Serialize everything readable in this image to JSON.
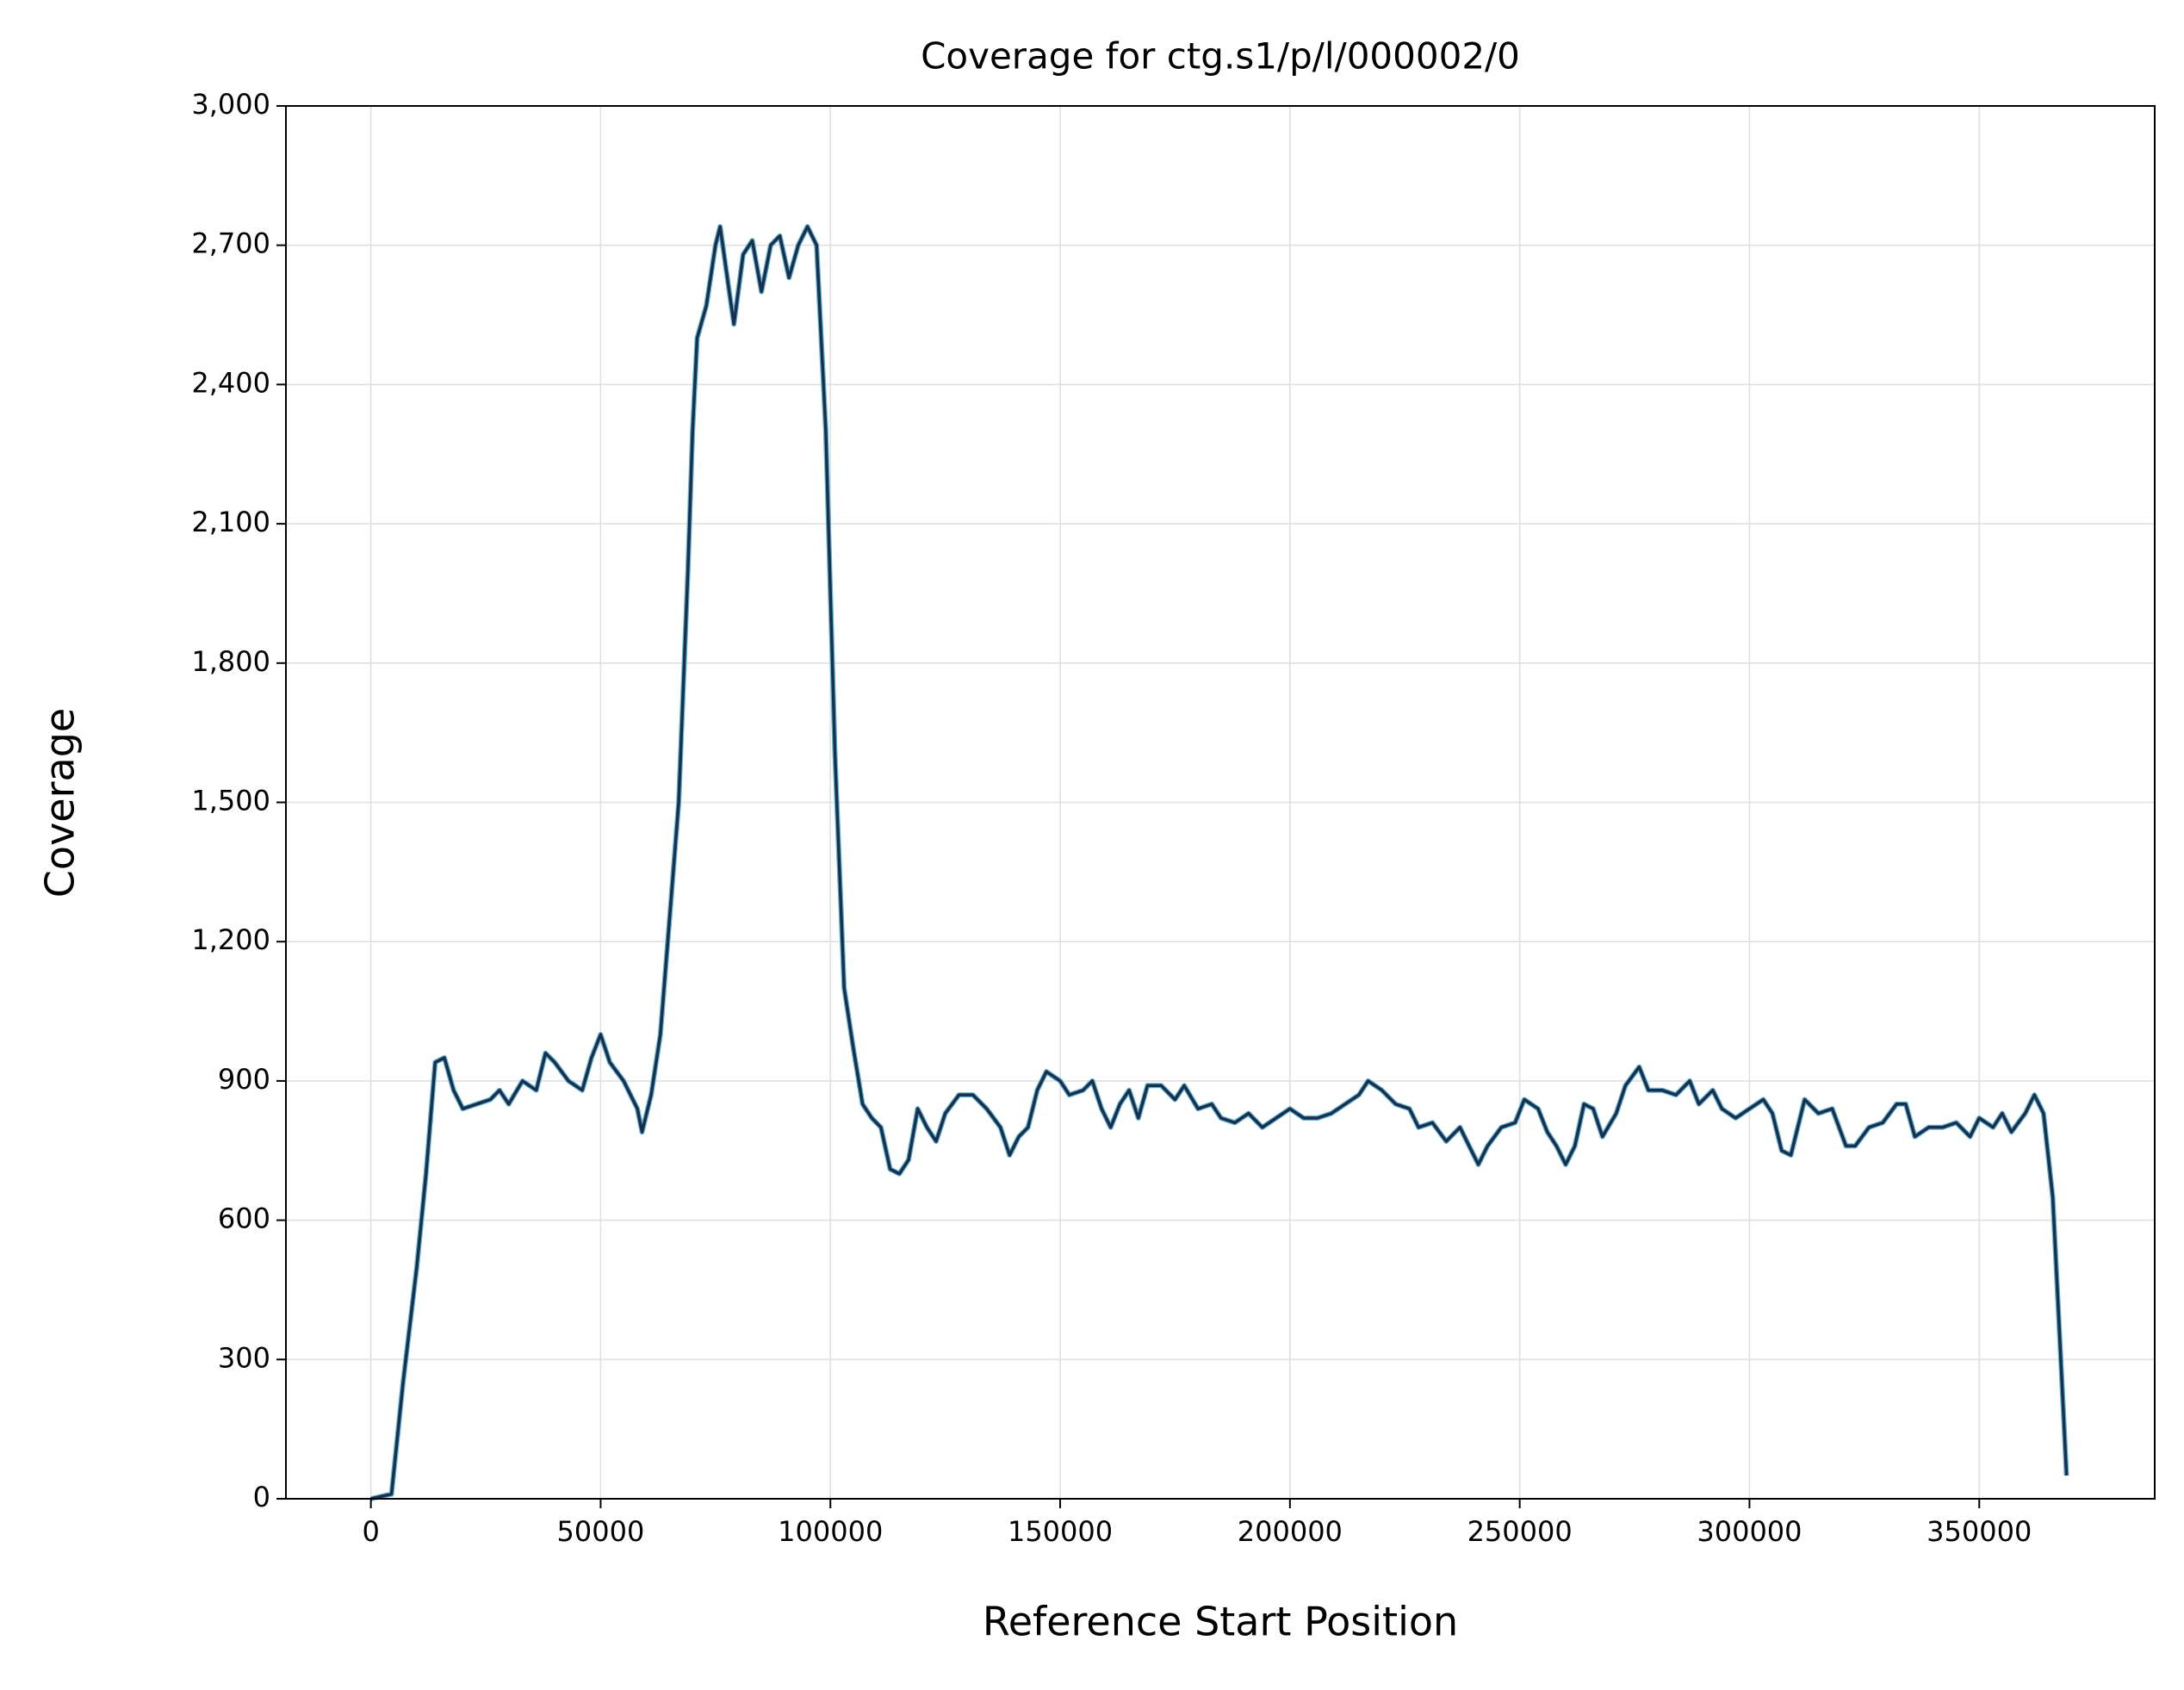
{
  "chart_data": {
    "type": "line",
    "title": "Coverage for ctg.s1/p/l/000002/0",
    "x_label": "Reference Start Position",
    "y_label": "Coverage",
    "xlim": [
      -18485,
      388185
    ],
    "ylim": [
      0,
      3000
    ],
    "xticks": [
      0,
      50000,
      100000,
      150000,
      200000,
      250000,
      300000,
      350000
    ],
    "yticks": [
      0,
      300,
      600,
      900,
      {
        "value": 1200,
        "label": "1,200"
      },
      {
        "value": 1500,
        "label": "1,500"
      },
      {
        "value": 1800,
        "label": "1,800"
      },
      {
        "value": 2100,
        "label": "2,100"
      },
      {
        "value": 2400,
        "label": "2,400"
      },
      {
        "value": 2700,
        "label": "2,700"
      },
      {
        "value": 3000,
        "label": "3,000"
      }
    ],
    "grid": true,
    "x": [
      0,
      4500,
      7000,
      10000,
      12000,
      14000,
      16000,
      18000,
      20000,
      23000,
      26000,
      28000,
      30000,
      33000,
      36000,
      38000,
      40000,
      43000,
      46000,
      48000,
      50000,
      52000,
      55000,
      58000,
      59000,
      61000,
      63000,
      65000,
      67000,
      69000,
      70000,
      71000,
      73000,
      75000,
      76000,
      78000,
      79000,
      81000,
      83000,
      85000,
      87000,
      89000,
      91000,
      93000,
      95000,
      97000,
      99000,
      101000,
      103000,
      105000,
      107000,
      109000,
      111000,
      113000,
      115000,
      117000,
      119000,
      121000,
      123000,
      125000,
      128000,
      131000,
      134000,
      137000,
      139000,
      141000,
      143000,
      145000,
      147000,
      150000,
      152000,
      155000,
      157000,
      159000,
      161000,
      163000,
      165000,
      167000,
      169000,
      172000,
      175000,
      177000,
      180000,
      183000,
      185000,
      188000,
      191000,
      194000,
      197000,
      200000,
      203000,
      206000,
      209000,
      212000,
      215000,
      217000,
      220000,
      223000,
      226000,
      228000,
      231000,
      234000,
      237000,
      239000,
      241000,
      243000,
      246000,
      249000,
      251000,
      254000,
      256000,
      258000,
      260000,
      262000,
      264000,
      266000,
      268000,
      271000,
      273000,
      276000,
      278000,
      281000,
      284000,
      287000,
      289000,
      292000,
      294000,
      297000,
      300000,
      303000,
      305000,
      307000,
      309000,
      312000,
      315000,
      318000,
      321000,
      323000,
      326000,
      329000,
      332000,
      334000,
      336000,
      339000,
      342000,
      345000,
      348000,
      350000,
      353000,
      355000,
      357000,
      360000,
      362000,
      364000,
      366000,
      368000,
      369000
    ],
    "series": [
      {
        "color": "#1b2f4b",
        "under_color": "#5fb4d6",
        "values": [
          0,
          10,
          250,
          500,
          700,
          940,
          950,
          880,
          840,
          850,
          860,
          880,
          850,
          900,
          880,
          960,
          940,
          900,
          880,
          950,
          1000,
          940,
          900,
          840,
          790,
          870,
          1000,
          1250,
          1500,
          2000,
          2300,
          2500,
          2570,
          2700,
          2740,
          2600,
          2530,
          2680,
          2710,
          2600,
          2700,
          2720,
          2630,
          2700,
          2740,
          2700,
          2300,
          1600,
          1100,
          970,
          850,
          820,
          800,
          710,
          700,
          730,
          840,
          800,
          770,
          830,
          870,
          870,
          840,
          800,
          740,
          780,
          800,
          880,
          920,
          900,
          870,
          880,
          900,
          840,
          800,
          850,
          880,
          820,
          890,
          890,
          860,
          890,
          840,
          850,
          820,
          810,
          830,
          800,
          820,
          840,
          820,
          820,
          830,
          850,
          870,
          900,
          880,
          850,
          840,
          800,
          810,
          770,
          800,
          760,
          720,
          760,
          800,
          810,
          860,
          840,
          790,
          760,
          720,
          760,
          850,
          840,
          780,
          830,
          890,
          930,
          880,
          880,
          870,
          900,
          850,
          880,
          840,
          820,
          840,
          860,
          830,
          750,
          740,
          860,
          830,
          840,
          760,
          760,
          800,
          810,
          850,
          850,
          780,
          800,
          800,
          810,
          780,
          820,
          800,
          830,
          790,
          830,
          870,
          830,
          650,
          250,
          50
        ]
      }
    ]
  }
}
